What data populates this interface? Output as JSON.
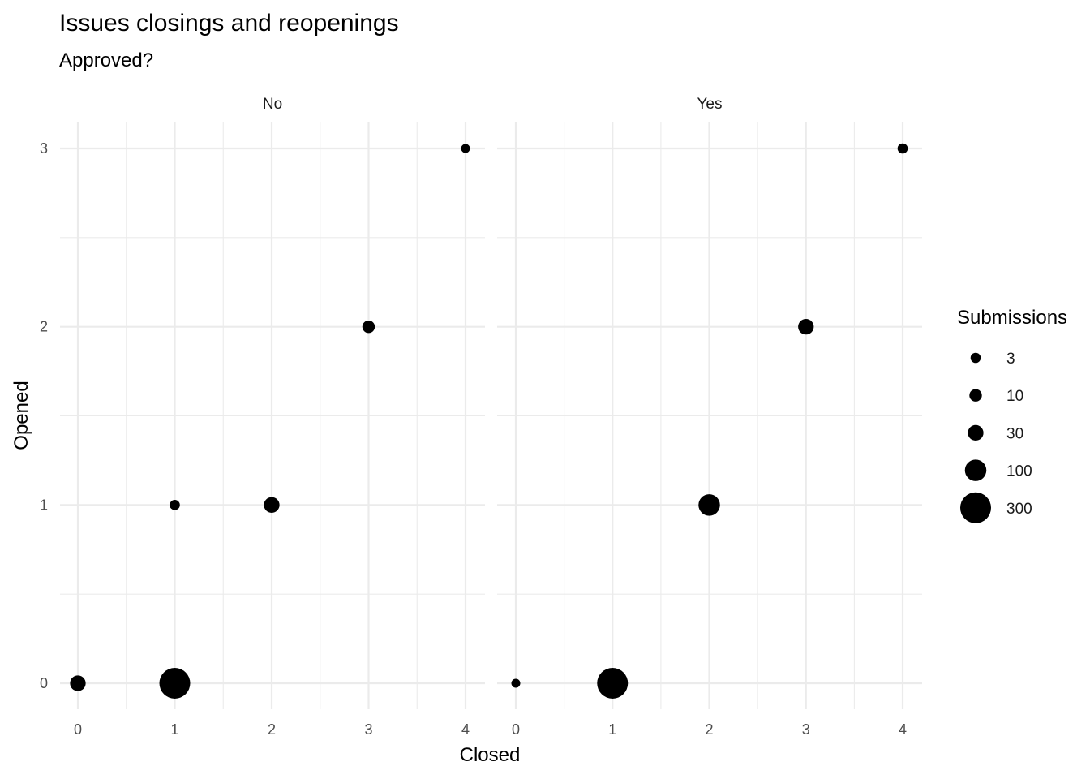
{
  "chart_data": {
    "type": "scatter",
    "title": "Issues closings and reopenings",
    "subtitle": "Approved?",
    "xlabel": "Closed",
    "ylabel": "Opened",
    "xlim": [
      0,
      4
    ],
    "ylim": [
      0,
      3
    ],
    "x_ticks": [
      "0",
      "1",
      "2",
      "3",
      "4"
    ],
    "y_ticks": [
      "0",
      "1",
      "2",
      "3"
    ],
    "grid": true,
    "facets": [
      {
        "label": "No",
        "points": [
          {
            "x": 0,
            "y": 0,
            "size": 30
          },
          {
            "x": 1,
            "y": 0,
            "size": 300
          },
          {
            "x": 1,
            "y": 1,
            "size": 3
          },
          {
            "x": 2,
            "y": 1,
            "size": 30
          },
          {
            "x": 3,
            "y": 2,
            "size": 10
          },
          {
            "x": 4,
            "y": 3,
            "size": 2
          }
        ]
      },
      {
        "label": "Yes",
        "points": [
          {
            "x": 0,
            "y": 0,
            "size": 2
          },
          {
            "x": 1,
            "y": 0,
            "size": 300
          },
          {
            "x": 2,
            "y": 1,
            "size": 100
          },
          {
            "x": 3,
            "y": 2,
            "size": 30
          },
          {
            "x": 4,
            "y": 3,
            "size": 3
          }
        ]
      }
    ],
    "legend": {
      "title": "Submissions",
      "placement": "right",
      "entries": [
        {
          "label": "3",
          "size": 3
        },
        {
          "label": "10",
          "size": 10
        },
        {
          "label": "30",
          "size": 30
        },
        {
          "label": "100",
          "size": 100
        },
        {
          "label": "300",
          "size": 300
        }
      ]
    },
    "point_color": "#000000",
    "grid_color": "#ebebeb"
  }
}
